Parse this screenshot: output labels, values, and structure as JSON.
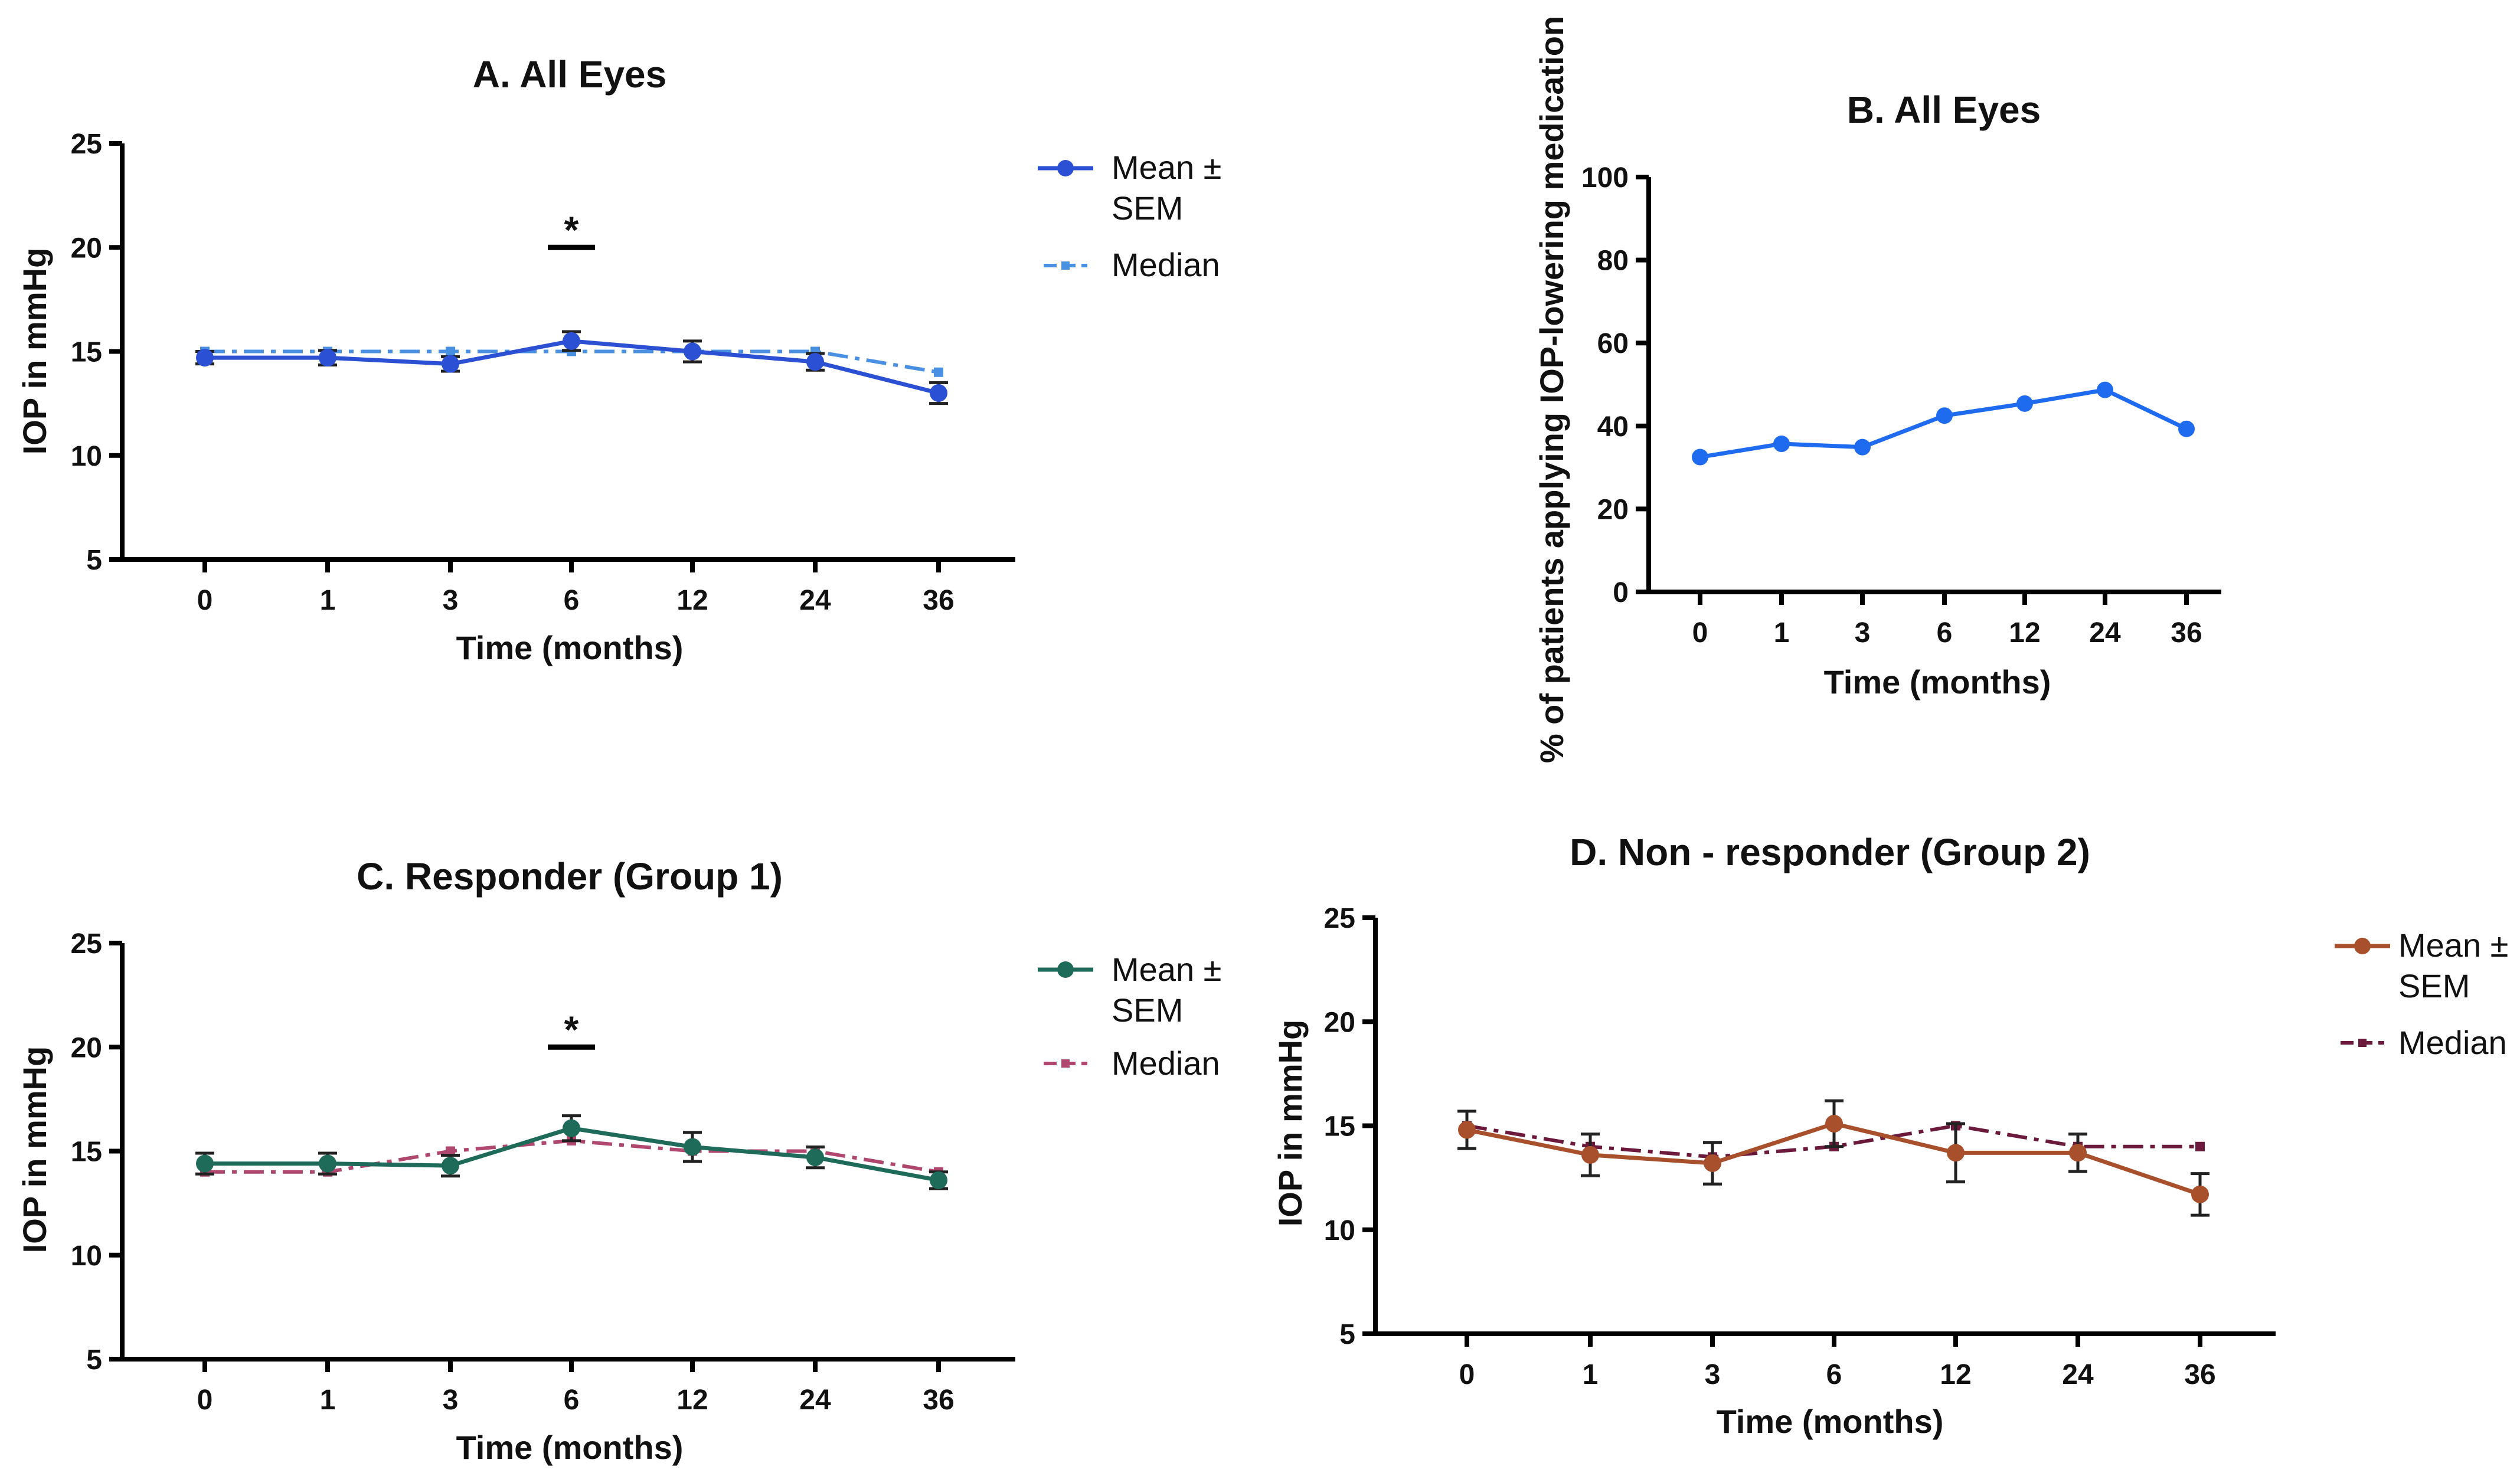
{
  "chart_data": [
    {
      "id": "A",
      "type": "line",
      "title": "A. All Eyes",
      "xlabel": "Time (months)",
      "ylabel": "IOP in mmHg",
      "categories": [
        "0",
        "1",
        "3",
        "6",
        "12",
        "24",
        "36"
      ],
      "ylim": [
        5,
        25
      ],
      "yticks": [
        "5",
        "10",
        "15",
        "20",
        "25"
      ],
      "series": [
        {
          "name": "Mean ± SEM",
          "kind": "mean",
          "color": "#2b50d4",
          "values": [
            14.7,
            14.7,
            14.4,
            15.5,
            15.0,
            14.5,
            13.0
          ],
          "sem": [
            0.3,
            0.35,
            0.35,
            0.45,
            0.5,
            0.4,
            0.5
          ]
        },
        {
          "name": "Median",
          "kind": "median",
          "color": "#4a90e2",
          "values": [
            15,
            15,
            15,
            15,
            15,
            15,
            14
          ]
        }
      ],
      "legend": {
        "mean_line1": "Mean ±",
        "mean_line2": "SEM",
        "median": "Median"
      },
      "significance": {
        "category": "6",
        "label": "*"
      }
    },
    {
      "id": "B",
      "type": "line",
      "title": "B. All Eyes",
      "xlabel": "Time (months)",
      "ylabel": "% of patients applying IOP-lowering medication",
      "categories": [
        "0",
        "1",
        "3",
        "6",
        "12",
        "24",
        "36"
      ],
      "ylim": [
        0,
        100
      ],
      "yticks": [
        "0",
        "20",
        "40",
        "60",
        "80",
        "100"
      ],
      "series": [
        {
          "name": "% of patients",
          "kind": "simple",
          "color": "#1f6bf0",
          "values": [
            32.5,
            35.7,
            34.9,
            42.5,
            45.4,
            48.7,
            39.3
          ]
        }
      ]
    },
    {
      "id": "C",
      "type": "line",
      "title": "C. Responder (Group 1)",
      "xlabel": "Time (months)",
      "ylabel": "IOP in mmHg",
      "categories": [
        "0",
        "1",
        "3",
        "6",
        "12",
        "24",
        "36"
      ],
      "ylim": [
        5,
        25
      ],
      "yticks": [
        "5",
        "10",
        "15",
        "20",
        "25"
      ],
      "series": [
        {
          "name": "Mean ± SEM",
          "kind": "mean",
          "color": "#1e6b5a",
          "values": [
            14.4,
            14.4,
            14.3,
            16.1,
            15.2,
            14.7,
            13.6
          ],
          "sem": [
            0.5,
            0.5,
            0.5,
            0.6,
            0.7,
            0.5,
            0.4
          ]
        },
        {
          "name": "Median",
          "kind": "median",
          "color": "#b0476e",
          "values": [
            14,
            14,
            15,
            15.5,
            15,
            15,
            14
          ]
        }
      ],
      "legend": {
        "mean_line1": "Mean ±",
        "mean_line2": "SEM",
        "median": "Median"
      },
      "significance": {
        "category": "6",
        "label": "*"
      }
    },
    {
      "id": "D",
      "type": "line",
      "title": "D. Non - responder (Group 2)",
      "xlabel": "Time (months)",
      "ylabel": "IOP in mmHg",
      "categories": [
        "0",
        "1",
        "3",
        "6",
        "12",
        "24",
        "36"
      ],
      "ylim": [
        5,
        25
      ],
      "yticks": [
        "5",
        "10",
        "15",
        "20",
        "25"
      ],
      "series": [
        {
          "name": "Mean ± SEM",
          "kind": "mean",
          "color": "#a8502b",
          "values": [
            14.8,
            13.6,
            13.2,
            15.1,
            13.7,
            13.7,
            11.7
          ],
          "sem": [
            0.9,
            1.0,
            1.0,
            1.1,
            1.4,
            0.9,
            1.0
          ]
        },
        {
          "name": "Median",
          "kind": "median",
          "color": "#6b1a3c",
          "values": [
            15,
            14,
            13.5,
            14,
            15,
            14,
            14
          ]
        }
      ],
      "legend": {
        "mean_line1": "Mean ±",
        "mean_line2": "SEM",
        "median": "Median"
      }
    }
  ]
}
